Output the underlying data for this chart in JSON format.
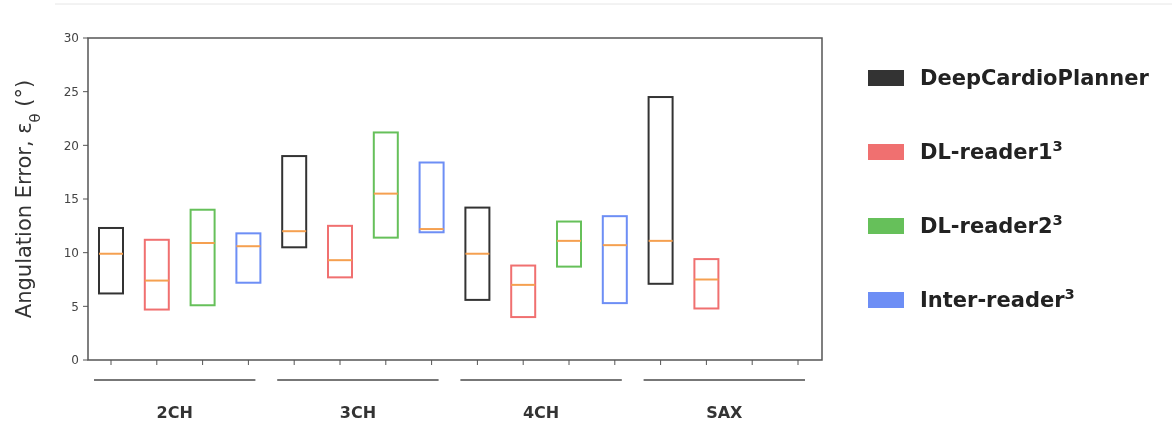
{
  "chart_data": {
    "type": "box",
    "ylabel": "Angulation Error, ε$_{θ}$ (°)",
    "categories": [
      "2CH",
      "3CH",
      "4CH",
      "SAX"
    ],
    "ylim": [
      0,
      30
    ],
    "yticks": [
      0,
      5,
      10,
      15,
      20,
      25,
      30
    ],
    "grid": false,
    "legend": "right",
    "series": [
      {
        "name": "DeepCardioPlanner",
        "color": "#333333",
        "boxes": [
          {
            "low": 6.2,
            "q1": 6.2,
            "median": 9.9,
            "q3": 12.3,
            "high": 12.3
          },
          {
            "low": 10.5,
            "q1": 10.5,
            "median": 12.0,
            "q3": 19.0,
            "high": 19.0
          },
          {
            "low": 5.6,
            "q1": 5.6,
            "median": 9.9,
            "q3": 14.2,
            "high": 14.2
          },
          {
            "low": 7.1,
            "q1": 7.1,
            "median": 11.1,
            "q3": 24.5,
            "high": 24.5
          }
        ]
      },
      {
        "name": "DL-reader1$^{3}$",
        "color": "#f07070",
        "boxes": [
          {
            "low": 4.7,
            "q1": 4.7,
            "median": 7.4,
            "q3": 11.2,
            "high": 11.2
          },
          {
            "low": 7.7,
            "q1": 7.7,
            "median": 9.3,
            "q3": 12.5,
            "high": 12.5
          },
          {
            "low": 4.0,
            "q1": 4.0,
            "median": 7.0,
            "q3": 8.8,
            "high": 8.8
          },
          {
            "low": 4.8,
            "q1": 4.8,
            "median": 7.5,
            "q3": 9.4,
            "high": 9.4
          }
        ]
      },
      {
        "name": "DL-reader2$^{3}$",
        "color": "#66c05a",
        "boxes": [
          {
            "low": 5.1,
            "q1": 5.1,
            "median": 10.9,
            "q3": 14.0,
            "high": 14.0
          },
          {
            "low": 11.4,
            "q1": 11.4,
            "median": 15.5,
            "q3": 21.2,
            "high": 21.2
          },
          {
            "low": 8.7,
            "q1": 8.7,
            "median": 11.1,
            "q3": 12.9,
            "high": 12.9
          },
          null
        ]
      },
      {
        "name": "Inter-reader$^{3}$",
        "color": "#6d8ef5",
        "boxes": [
          {
            "low": 7.2,
            "q1": 7.2,
            "median": 10.6,
            "q3": 11.8,
            "high": 11.8
          },
          {
            "low": 11.9,
            "q1": 11.9,
            "median": 12.2,
            "q3": 18.4,
            "high": 18.4
          },
          {
            "low": 5.3,
            "q1": 5.3,
            "median": 10.7,
            "q3": 13.4,
            "high": 13.4
          },
          null
        ]
      }
    ]
  }
}
